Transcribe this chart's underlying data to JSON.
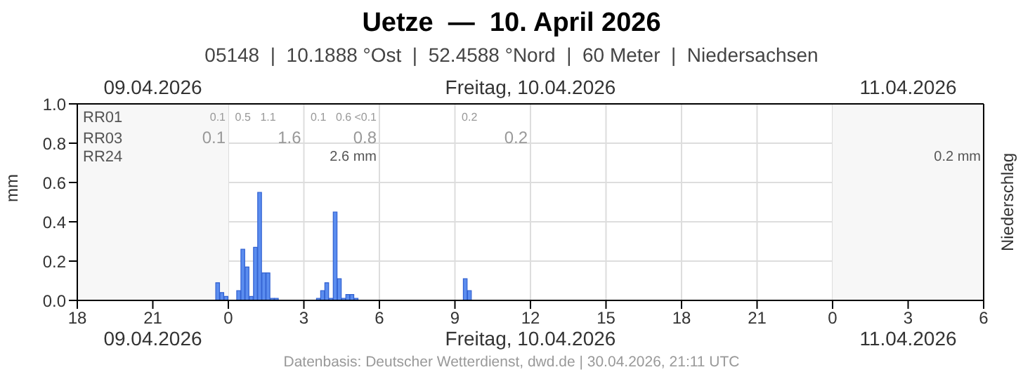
{
  "chart_data": {
    "type": "bar",
    "title": "Uetze  —  10. April 2026",
    "subtitle": "05148  |  10.1888 °Ost  |  52.4588 °Nord  |  60 Meter  |  Niedersachsen",
    "ylabel": "mm",
    "y2label": "Niederschlag",
    "x": [
      "2026-04-09T23:35",
      "2026-04-09T23:45",
      "2026-04-09T23:55",
      "2026-04-10T00:25",
      "2026-04-10T00:35",
      "2026-04-10T00:45",
      "2026-04-10T00:55",
      "2026-04-10T01:05",
      "2026-04-10T01:15",
      "2026-04-10T01:25",
      "2026-04-10T01:35",
      "2026-04-10T01:45",
      "2026-04-10T01:55",
      "2026-04-10T03:35",
      "2026-04-10T03:45",
      "2026-04-10T03:55",
      "2026-04-10T04:05",
      "2026-04-10T04:15",
      "2026-04-10T04:25",
      "2026-04-10T04:35",
      "2026-04-10T04:45",
      "2026-04-10T04:55",
      "2026-04-10T05:05",
      "2026-04-10T09:25",
      "2026-04-10T09:35"
    ],
    "values": [
      0.09,
      0.04,
      0.02,
      0.05,
      0.26,
      0.17,
      0.02,
      0.27,
      0.55,
      0.14,
      0.14,
      0.01,
      0.01,
      0.01,
      0.05,
      0.09,
      0.01,
      0.45,
      0.11,
      0.01,
      0.03,
      0.03,
      0.01,
      0.11,
      0.05
    ],
    "color": "#5b8def",
    "xlim": [
      "2026-04-09T18:00",
      "2026-04-11T06:00"
    ],
    "xticks": [
      {
        "value": "2026-04-09T18:00",
        "label": "18"
      },
      {
        "value": "2026-04-09T21:00",
        "label": "21"
      },
      {
        "value": "2026-04-10T00:00",
        "label": "0"
      },
      {
        "value": "2026-04-10T03:00",
        "label": "3"
      },
      {
        "value": "2026-04-10T06:00",
        "label": "6"
      },
      {
        "value": "2026-04-10T09:00",
        "label": "9"
      },
      {
        "value": "2026-04-10T12:00",
        "label": "12"
      },
      {
        "value": "2026-04-10T15:00",
        "label": "15"
      },
      {
        "value": "2026-04-10T18:00",
        "label": "18"
      },
      {
        "value": "2026-04-10T21:00",
        "label": "21"
      },
      {
        "value": "2026-04-11T00:00",
        "label": "0"
      },
      {
        "value": "2026-04-11T03:00",
        "label": "3"
      },
      {
        "value": "2026-04-11T06:00",
        "label": "6"
      }
    ],
    "x2lim": [
      "2026-04-09T18:00",
      "2026-04-11T06:00"
    ],
    "x2ticks": [
      {
        "value": "2026-04-09T21:00",
        "label": "09.04.2026"
      },
      {
        "value": "2026-04-10T12:00",
        "label": "Freitag, 10.04.2026"
      },
      {
        "value": "2026-04-11T03:00",
        "label": "11.04.2026"
      }
    ],
    "ylim": [
      0,
      1
    ],
    "yticks": [
      {
        "value": 0,
        "label": "0.0"
      },
      {
        "value": 0.2,
        "label": "0.2"
      },
      {
        "value": 0.4,
        "label": "0.4"
      },
      {
        "value": 0.6,
        "label": "0.6"
      },
      {
        "value": 0.8,
        "label": "0.8"
      },
      {
        "value": 1,
        "label": "1.0"
      }
    ],
    "grid": true,
    "bands": [
      {
        "axis": "x",
        "from": "2026-04-09T18:00",
        "to": "2026-04-10T00:00",
        "color": "#f7f7f7"
      },
      {
        "axis": "x",
        "from": "2026-04-11T00:00",
        "to": "2026-04-11T06:00",
        "color": "#f7f7f7"
      }
    ],
    "annotations": [
      "RR01",
      "RR03",
      "RR24",
      "0.1",
      "0.5",
      "1.1",
      "0.1",
      "0.6",
      "<0.1",
      "0.2",
      "0.1",
      "1.6",
      "0.8",
      "0.2",
      "2.6 mm",
      "0.2 mm",
      "Datenbasis: Deutscher Wetterdienst, dwd.de | 30.04.2026, 21:11 UTC"
    ]
  }
}
